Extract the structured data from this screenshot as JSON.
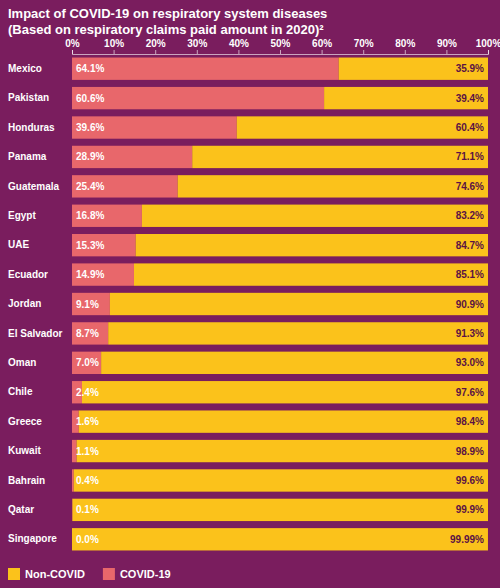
{
  "chart_data": {
    "type": "bar",
    "orientation": "horizontal",
    "stacked": true,
    "data_labels": true,
    "legend": "bottom-left",
    "title": "Impact of COVID-19 on respiratory system diseases",
    "subtitle": "(Based on respiratory claims paid amount in 2020)²",
    "categories": [
      "Mexico",
      "Pakistan",
      "Honduras",
      "Panama",
      "Guatemala",
      "Egypt",
      "UAE",
      "Ecuador",
      "Jordan",
      "El Salvador",
      "Oman",
      "Chile",
      "Greece",
      "Kuwait",
      "Bahrain",
      "Qatar",
      "Singapore"
    ],
    "xlim": [
      0,
      100
    ],
    "xticks": [
      {
        "value": 0,
        "label": "0%"
      },
      {
        "value": 10,
        "label": "10%"
      },
      {
        "value": 20,
        "label": "20%"
      },
      {
        "value": 30,
        "label": "30%"
      },
      {
        "value": 40,
        "label": "40%"
      },
      {
        "value": 50,
        "label": "50%"
      },
      {
        "value": 60,
        "label": "60%"
      },
      {
        "value": 70,
        "label": "70%"
      },
      {
        "value": 80,
        "label": "80%"
      },
      {
        "value": 90,
        "label": "90%"
      },
      {
        "value": 100,
        "label": "100%"
      }
    ],
    "series": [
      {
        "name": "COVID-19",
        "color": "#e8676b",
        "values": [
          64.1,
          60.6,
          39.6,
          28.9,
          25.4,
          16.8,
          15.3,
          14.9,
          9.1,
          8.7,
          7.0,
          2.4,
          1.6,
          1.1,
          0.4,
          0.1,
          0.0
        ],
        "value_labels": [
          "64.1%",
          "60.6%",
          "39.6%",
          "28.9%",
          "25.4%",
          "16.8%",
          "15.3%",
          "14.9%",
          "9.1%",
          "8.7%",
          "7.0%",
          "2.4%",
          "1.6%",
          "1.1%",
          "0.4%",
          "0.1%",
          "0.0%"
        ]
      },
      {
        "name": "Non-COVID",
        "color": "#fbc21b",
        "values": [
          35.9,
          39.4,
          60.4,
          71.1,
          74.6,
          83.2,
          84.7,
          85.1,
          90.9,
          91.3,
          93.0,
          97.6,
          98.4,
          98.9,
          99.6,
          99.9,
          99.99
        ],
        "value_labels": [
          "35.9%",
          "39.4%",
          "60.4%",
          "71.1%",
          "74.6%",
          "83.2%",
          "84.7%",
          "85.1%",
          "90.9%",
          "91.3%",
          "93.0%",
          "97.6%",
          "98.4%",
          "98.9%",
          "99.6%",
          "99.9%",
          "99.99%"
        ]
      }
    ]
  }
}
